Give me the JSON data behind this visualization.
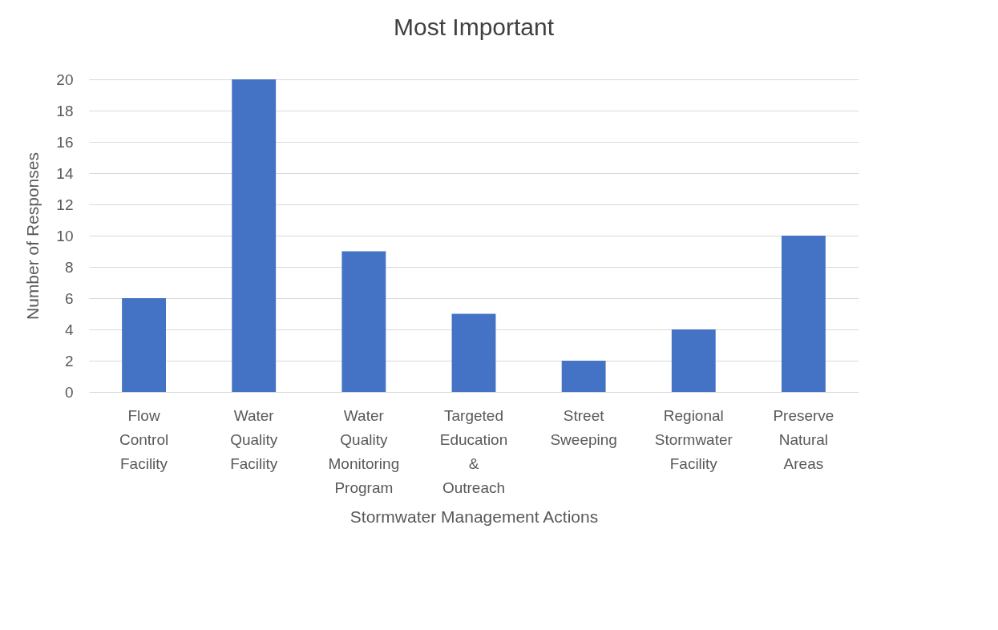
{
  "chart_data": {
    "type": "bar",
    "title": "Most Important",
    "xlabel": "Stormwater Management Actions",
    "ylabel": "Number of Responses",
    "categories": [
      "Flow Control Facility",
      "Water Quality Facility",
      "Water Quality Monitoring Program",
      "Targeted Education & Outreach",
      "Street Sweeping",
      "Regional Stormwater Facility",
      "Preserve Natural Areas"
    ],
    "values": [
      6,
      20,
      9,
      5,
      2,
      4,
      10
    ],
    "color": "#4472c4",
    "ylim": [
      0,
      20
    ],
    "yticks": [
      0,
      2,
      4,
      6,
      8,
      10,
      12,
      14,
      16,
      18,
      20
    ],
    "grid": "y"
  }
}
